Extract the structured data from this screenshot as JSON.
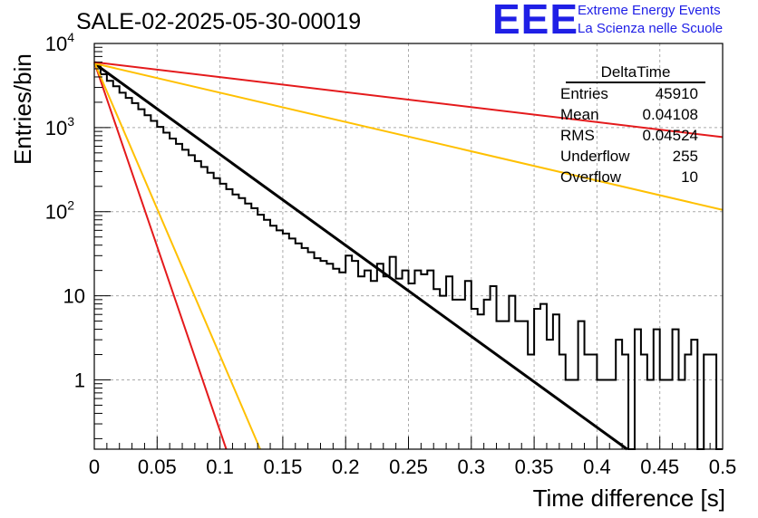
{
  "title": "SALE-02-2025-05-30-00019",
  "logo": {
    "mark": "EEE",
    "line1": "Extreme Energy Events",
    "line2": "La Scienza nelle Scuole"
  },
  "stats": {
    "name": "DeltaTime",
    "rows": [
      {
        "label": "Entries",
        "value": "45910"
      },
      {
        "label": "Mean",
        "value": "0.04108"
      },
      {
        "label": "RMS",
        "value": "0.04524"
      },
      {
        "label": "Underflow",
        "value": "255"
      },
      {
        "label": "Overflow",
        "value": "10"
      }
    ]
  },
  "chart_data": {
    "type": "line",
    "title": "SALE-02-2025-05-30-00019",
    "xlabel": "Time difference [s]",
    "ylabel": "Entries/bin",
    "xlim": [
      0,
      0.5
    ],
    "ylim": [
      0.15,
      10000
    ],
    "y_scale": "log",
    "grid": true,
    "x_ticks": [
      "0",
      "0.05",
      "0.1",
      "0.15",
      "0.2",
      "0.25",
      "0.3",
      "0.35",
      "0.4",
      "0.45",
      "0.5"
    ],
    "y_ticks": [
      {
        "value": 1,
        "label": "1"
      },
      {
        "value": 10,
        "label": "10"
      },
      {
        "value": 100,
        "label": "10",
        "exp": "2"
      },
      {
        "value": 1000,
        "label": "10",
        "exp": "3"
      },
      {
        "value": 10000,
        "label": "10",
        "exp": "4"
      }
    ],
    "histogram": {
      "name": "DeltaTime",
      "color": "#000000",
      "bin_width": 0.005,
      "values": [
        5500,
        4300,
        3600,
        3100,
        2600,
        2250,
        1950,
        1650,
        1400,
        1200,
        1020,
        870,
        740,
        640,
        545,
        470,
        400,
        340,
        290,
        250,
        215,
        185,
        160,
        145,
        125,
        110,
        92,
        80,
        68,
        60,
        55,
        48,
        42,
        37,
        33,
        28,
        26,
        24,
        21,
        19,
        30,
        26,
        17,
        20,
        15,
        24,
        17,
        29,
        16,
        20,
        14,
        20,
        18,
        20,
        12,
        10,
        17,
        9,
        9,
        15,
        7,
        6,
        9,
        13,
        5,
        5,
        10,
        5,
        5,
        2,
        7,
        8,
        3,
        6,
        2,
        1,
        1,
        5,
        2,
        2,
        1,
        1,
        1,
        3,
        2,
        0,
        4,
        2,
        1,
        4,
        1,
        1,
        4,
        1,
        2,
        3,
        0,
        2,
        2,
        0
      ]
    },
    "series": [
      {
        "color": "#000000",
        "x": [
          0,
          0.424
        ],
        "y": [
          5800,
          0.15
        ]
      },
      {
        "color": "#e41a1c",
        "x": [
          0,
          0.105
        ],
        "y": [
          6000,
          0.15
        ]
      },
      {
        "color": "#ffc000",
        "x": [
          0,
          0.132
        ],
        "y": [
          6000,
          0.15
        ]
      },
      {
        "color": "#ffc000",
        "x": [
          0,
          0.5
        ],
        "y": [
          5800,
          105
        ]
      },
      {
        "color": "#e41a1c",
        "x": [
          0,
          0.5
        ],
        "y": [
          6000,
          770
        ]
      }
    ]
  }
}
